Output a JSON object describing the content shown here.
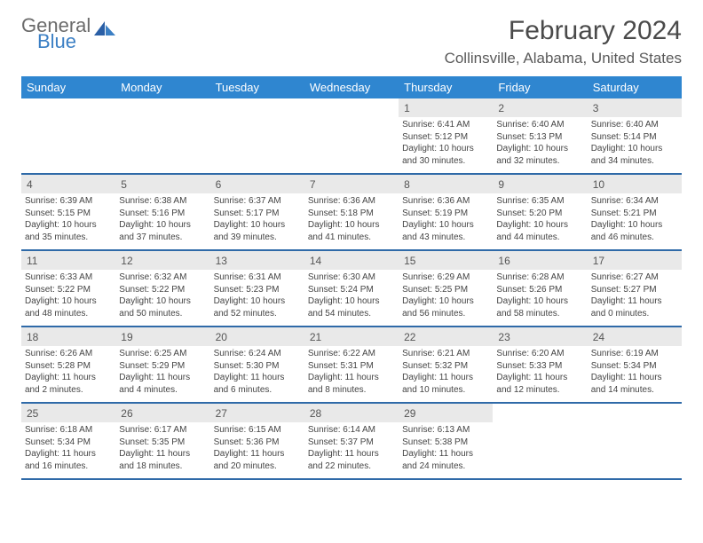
{
  "brand": {
    "line1": "General",
    "line2": "Blue"
  },
  "title": "February 2024",
  "location": "Collinsville, Alabama, United States",
  "colors": {
    "header_bg": "#2f86d0",
    "header_text": "#ffffff",
    "daynum_bg": "#e9e9e9",
    "week_border": "#2f6aa8",
    "brand_gray": "#6b6b6b",
    "brand_blue": "#3b7fc4"
  },
  "weekdays": [
    "Sunday",
    "Monday",
    "Tuesday",
    "Wednesday",
    "Thursday",
    "Friday",
    "Saturday"
  ],
  "weeks": [
    [
      {
        "empty": true
      },
      {
        "empty": true
      },
      {
        "empty": true
      },
      {
        "empty": true
      },
      {
        "num": "1",
        "sunrise": "Sunrise: 6:41 AM",
        "sunset": "Sunset: 5:12 PM",
        "daylight": "Daylight: 10 hours and 30 minutes."
      },
      {
        "num": "2",
        "sunrise": "Sunrise: 6:40 AM",
        "sunset": "Sunset: 5:13 PM",
        "daylight": "Daylight: 10 hours and 32 minutes."
      },
      {
        "num": "3",
        "sunrise": "Sunrise: 6:40 AM",
        "sunset": "Sunset: 5:14 PM",
        "daylight": "Daylight: 10 hours and 34 minutes."
      }
    ],
    [
      {
        "num": "4",
        "sunrise": "Sunrise: 6:39 AM",
        "sunset": "Sunset: 5:15 PM",
        "daylight": "Daylight: 10 hours and 35 minutes."
      },
      {
        "num": "5",
        "sunrise": "Sunrise: 6:38 AM",
        "sunset": "Sunset: 5:16 PM",
        "daylight": "Daylight: 10 hours and 37 minutes."
      },
      {
        "num": "6",
        "sunrise": "Sunrise: 6:37 AM",
        "sunset": "Sunset: 5:17 PM",
        "daylight": "Daylight: 10 hours and 39 minutes."
      },
      {
        "num": "7",
        "sunrise": "Sunrise: 6:36 AM",
        "sunset": "Sunset: 5:18 PM",
        "daylight": "Daylight: 10 hours and 41 minutes."
      },
      {
        "num": "8",
        "sunrise": "Sunrise: 6:36 AM",
        "sunset": "Sunset: 5:19 PM",
        "daylight": "Daylight: 10 hours and 43 minutes."
      },
      {
        "num": "9",
        "sunrise": "Sunrise: 6:35 AM",
        "sunset": "Sunset: 5:20 PM",
        "daylight": "Daylight: 10 hours and 44 minutes."
      },
      {
        "num": "10",
        "sunrise": "Sunrise: 6:34 AM",
        "sunset": "Sunset: 5:21 PM",
        "daylight": "Daylight: 10 hours and 46 minutes."
      }
    ],
    [
      {
        "num": "11",
        "sunrise": "Sunrise: 6:33 AM",
        "sunset": "Sunset: 5:22 PM",
        "daylight": "Daylight: 10 hours and 48 minutes."
      },
      {
        "num": "12",
        "sunrise": "Sunrise: 6:32 AM",
        "sunset": "Sunset: 5:22 PM",
        "daylight": "Daylight: 10 hours and 50 minutes."
      },
      {
        "num": "13",
        "sunrise": "Sunrise: 6:31 AM",
        "sunset": "Sunset: 5:23 PM",
        "daylight": "Daylight: 10 hours and 52 minutes."
      },
      {
        "num": "14",
        "sunrise": "Sunrise: 6:30 AM",
        "sunset": "Sunset: 5:24 PM",
        "daylight": "Daylight: 10 hours and 54 minutes."
      },
      {
        "num": "15",
        "sunrise": "Sunrise: 6:29 AM",
        "sunset": "Sunset: 5:25 PM",
        "daylight": "Daylight: 10 hours and 56 minutes."
      },
      {
        "num": "16",
        "sunrise": "Sunrise: 6:28 AM",
        "sunset": "Sunset: 5:26 PM",
        "daylight": "Daylight: 10 hours and 58 minutes."
      },
      {
        "num": "17",
        "sunrise": "Sunrise: 6:27 AM",
        "sunset": "Sunset: 5:27 PM",
        "daylight": "Daylight: 11 hours and 0 minutes."
      }
    ],
    [
      {
        "num": "18",
        "sunrise": "Sunrise: 6:26 AM",
        "sunset": "Sunset: 5:28 PM",
        "daylight": "Daylight: 11 hours and 2 minutes."
      },
      {
        "num": "19",
        "sunrise": "Sunrise: 6:25 AM",
        "sunset": "Sunset: 5:29 PM",
        "daylight": "Daylight: 11 hours and 4 minutes."
      },
      {
        "num": "20",
        "sunrise": "Sunrise: 6:24 AM",
        "sunset": "Sunset: 5:30 PM",
        "daylight": "Daylight: 11 hours and 6 minutes."
      },
      {
        "num": "21",
        "sunrise": "Sunrise: 6:22 AM",
        "sunset": "Sunset: 5:31 PM",
        "daylight": "Daylight: 11 hours and 8 minutes."
      },
      {
        "num": "22",
        "sunrise": "Sunrise: 6:21 AM",
        "sunset": "Sunset: 5:32 PM",
        "daylight": "Daylight: 11 hours and 10 minutes."
      },
      {
        "num": "23",
        "sunrise": "Sunrise: 6:20 AM",
        "sunset": "Sunset: 5:33 PM",
        "daylight": "Daylight: 11 hours and 12 minutes."
      },
      {
        "num": "24",
        "sunrise": "Sunrise: 6:19 AM",
        "sunset": "Sunset: 5:34 PM",
        "daylight": "Daylight: 11 hours and 14 minutes."
      }
    ],
    [
      {
        "num": "25",
        "sunrise": "Sunrise: 6:18 AM",
        "sunset": "Sunset: 5:34 PM",
        "daylight": "Daylight: 11 hours and 16 minutes."
      },
      {
        "num": "26",
        "sunrise": "Sunrise: 6:17 AM",
        "sunset": "Sunset: 5:35 PM",
        "daylight": "Daylight: 11 hours and 18 minutes."
      },
      {
        "num": "27",
        "sunrise": "Sunrise: 6:15 AM",
        "sunset": "Sunset: 5:36 PM",
        "daylight": "Daylight: 11 hours and 20 minutes."
      },
      {
        "num": "28",
        "sunrise": "Sunrise: 6:14 AM",
        "sunset": "Sunset: 5:37 PM",
        "daylight": "Daylight: 11 hours and 22 minutes."
      },
      {
        "num": "29",
        "sunrise": "Sunrise: 6:13 AM",
        "sunset": "Sunset: 5:38 PM",
        "daylight": "Daylight: 11 hours and 24 minutes."
      },
      {
        "empty": true
      },
      {
        "empty": true
      }
    ]
  ]
}
